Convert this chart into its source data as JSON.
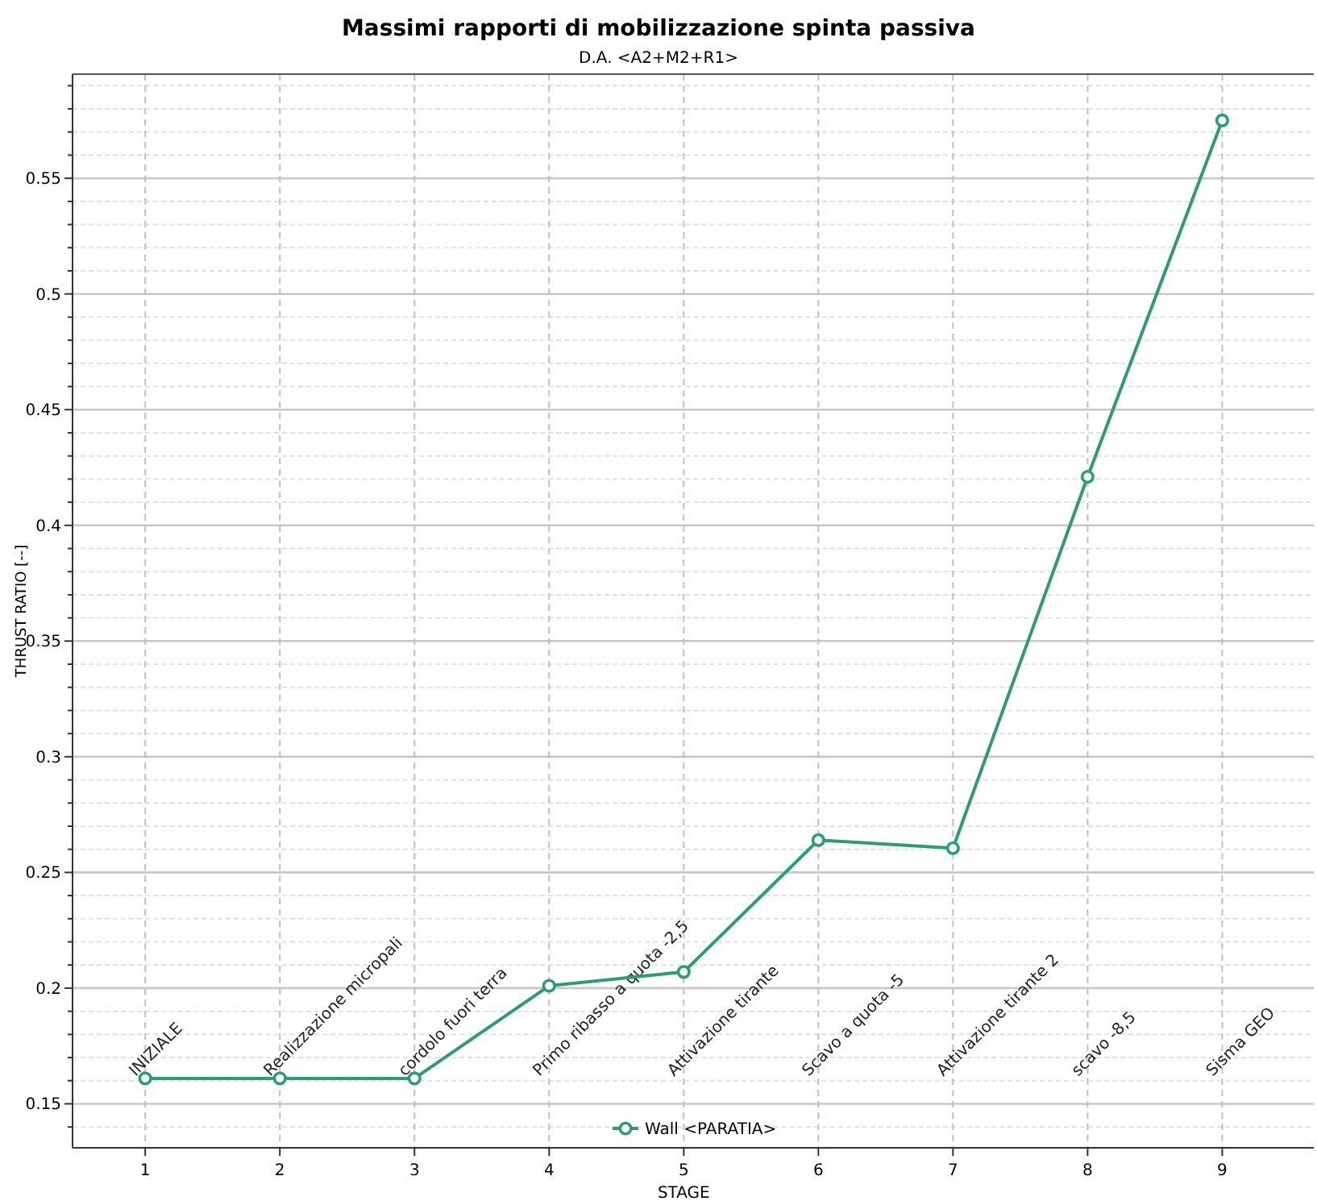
{
  "chart_data": {
    "type": "line",
    "title": "Massimi rapporti di mobilizzazione spinta passiva",
    "subtitle": "D.A. <A2+M2+R1>",
    "xlabel": "STAGE",
    "ylabel": "THRUST RATIO [--]",
    "x": [
      1,
      2,
      3,
      4,
      5,
      6,
      7,
      8,
      9
    ],
    "series": [
      {
        "name": "Wall <PARATIA>",
        "color": "#2a9d78",
        "values": [
          0.161,
          0.161,
          0.161,
          0.201,
          0.207,
          0.264,
          0.2605,
          0.421,
          0.575
        ]
      }
    ],
    "xlim": [
      0.46,
      9.68
    ],
    "xticks": [
      1,
      2,
      3,
      4,
      5,
      6,
      7,
      8,
      9
    ],
    "ylim": [
      0.131,
      0.595
    ],
    "yticks": [
      {
        "value": 0.14,
        "label": null
      },
      0.15,
      {
        "value": 0.16,
        "label": null
      },
      {
        "value": 0.17,
        "label": null
      },
      {
        "value": 0.18,
        "label": null
      },
      {
        "value": 0.19,
        "label": null
      },
      0.2,
      {
        "value": 0.21,
        "label": null
      },
      {
        "value": 0.22,
        "label": null
      },
      {
        "value": 0.23,
        "label": null
      },
      {
        "value": 0.24,
        "label": null
      },
      0.25,
      {
        "value": 0.26,
        "label": null
      },
      {
        "value": 0.27,
        "label": null
      },
      {
        "value": 0.28,
        "label": null
      },
      {
        "value": 0.29,
        "label": null
      },
      0.3,
      {
        "value": 0.31,
        "label": null
      },
      {
        "value": 0.32,
        "label": null
      },
      {
        "value": 0.33,
        "label": null
      },
      {
        "value": 0.34,
        "label": null
      },
      0.35,
      {
        "value": 0.36,
        "label": null
      },
      {
        "value": 0.37,
        "label": null
      },
      {
        "value": 0.38,
        "label": null
      },
      {
        "value": 0.39,
        "label": null
      },
      0.4,
      {
        "value": 0.41,
        "label": null
      },
      {
        "value": 0.42,
        "label": null
      },
      {
        "value": 0.43,
        "label": null
      },
      {
        "value": 0.44,
        "label": null
      },
      0.45,
      {
        "value": 0.46,
        "label": null
      },
      {
        "value": 0.47,
        "label": null
      },
      {
        "value": 0.48,
        "label": null
      },
      {
        "value": 0.49,
        "label": null
      },
      0.5,
      {
        "value": 0.51,
        "label": null
      },
      {
        "value": 0.52,
        "label": null
      },
      {
        "value": 0.53,
        "label": null
      },
      {
        "value": 0.54,
        "label": null
      },
      0.55,
      {
        "value": 0.56,
        "label": null
      },
      {
        "value": 0.57,
        "label": null
      },
      {
        "value": 0.58,
        "label": null
      },
      {
        "value": 0.59,
        "label": null
      }
    ],
    "annotations": [
      "INIZIALE",
      "Realizzazione micropali",
      "cordolo fuori terra",
      "Primo ribasso a quota -2,5",
      "Attivazione tirante",
      "Scavo a quota -5",
      "Attivazione tirante 2",
      "scavo -8,5",
      "Sisma GEO"
    ],
    "grid": true,
    "legend": "bottom",
    "marker": "circle",
    "line_style": "solid"
  }
}
